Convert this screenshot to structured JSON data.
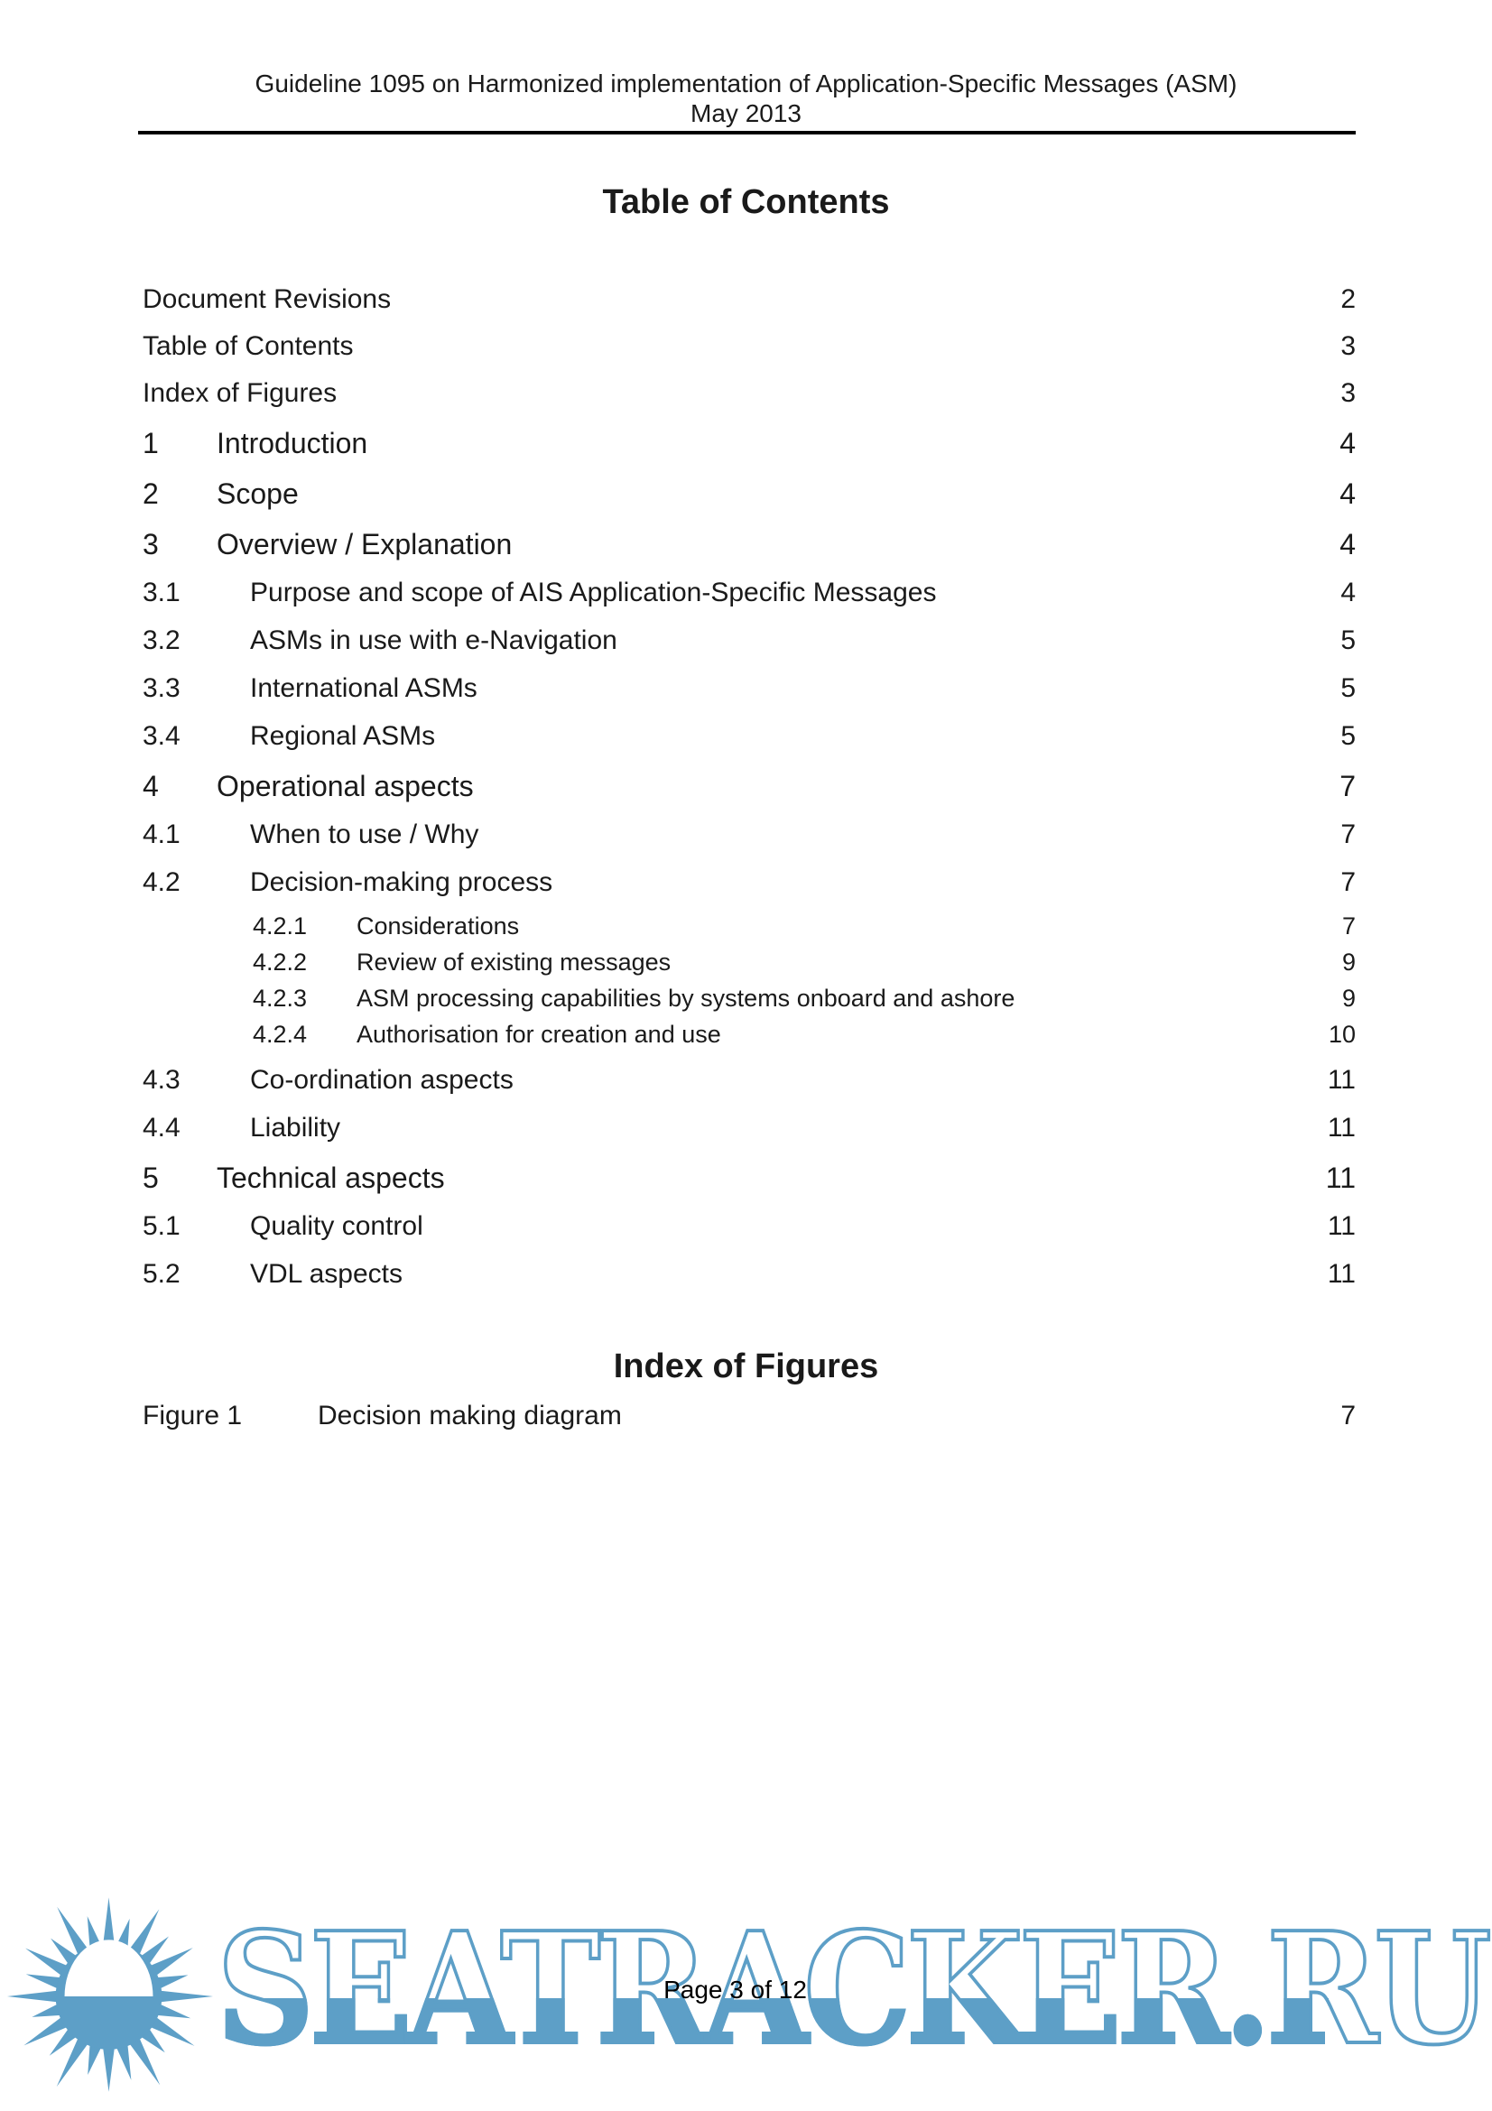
{
  "header": {
    "line1": "Guideline 1095 on Harmonized implementation of Application-Specific Messages (ASM)",
    "line2": "May 2013"
  },
  "toc": {
    "title": "Table of Contents",
    "entries": [
      {
        "num": "",
        "label": "Document Revisions",
        "page": "2",
        "level": 0
      },
      {
        "num": "",
        "label": "Table of Contents",
        "page": "3",
        "level": 0
      },
      {
        "num": "",
        "label": "Index of Figures",
        "page": "3",
        "level": 0
      },
      {
        "num": "1",
        "label": "Introduction",
        "page": "4",
        "level": 1
      },
      {
        "num": "2",
        "label": "Scope",
        "page": "4",
        "level": 1
      },
      {
        "num": "3",
        "label": "Overview / Explanation",
        "page": "4",
        "level": 1
      },
      {
        "num": "3.1",
        "label": "Purpose and scope of AIS Application-Specific Messages",
        "page": "4",
        "level": 2
      },
      {
        "num": "3.2",
        "label": "ASMs in use with e-Navigation",
        "page": "5",
        "level": 2
      },
      {
        "num": "3.3",
        "label": "International ASMs",
        "page": "5",
        "level": 2
      },
      {
        "num": "3.4",
        "label": "Regional ASMs",
        "page": "5",
        "level": 2
      },
      {
        "num": "4",
        "label": "Operational aspects",
        "page": "7",
        "level": 1
      },
      {
        "num": "4.1",
        "label": "When to use / Why",
        "page": "7",
        "level": 2
      },
      {
        "num": "4.2",
        "label": "Decision-making process",
        "page": "7",
        "level": 2
      },
      {
        "num": "4.2.1",
        "label": "Considerations",
        "page": "7",
        "level": 3
      },
      {
        "num": "4.2.2",
        "label": "Review of existing messages",
        "page": "9",
        "level": 3
      },
      {
        "num": "4.2.3",
        "label": "ASM processing capabilities by systems onboard and ashore",
        "page": "9",
        "level": 3
      },
      {
        "num": "4.2.4",
        "label": "Authorisation for creation and use",
        "page": "10",
        "level": 3
      },
      {
        "num": "4.3",
        "label": "Co-ordination aspects",
        "page": "11",
        "level": 2
      },
      {
        "num": "4.4",
        "label": "Liability",
        "page": "11",
        "level": 2
      },
      {
        "num": "5",
        "label": "Technical aspects",
        "page": "11",
        "level": 1
      },
      {
        "num": "5.1",
        "label": "Quality control",
        "page": "11",
        "level": 2
      },
      {
        "num": "5.2",
        "label": "VDL aspects",
        "page": "11",
        "level": 2
      }
    ]
  },
  "figures": {
    "title": "Index of Figures",
    "entries": [
      {
        "num": "Figure 1",
        "label": "Decision making diagram",
        "page": "7"
      }
    ]
  },
  "footer": {
    "page_label": "Page 3 of 12"
  },
  "watermark": {
    "text": "SEATRACKER.RU",
    "color": "#5d9fc7",
    "logo": "sun-logo"
  }
}
